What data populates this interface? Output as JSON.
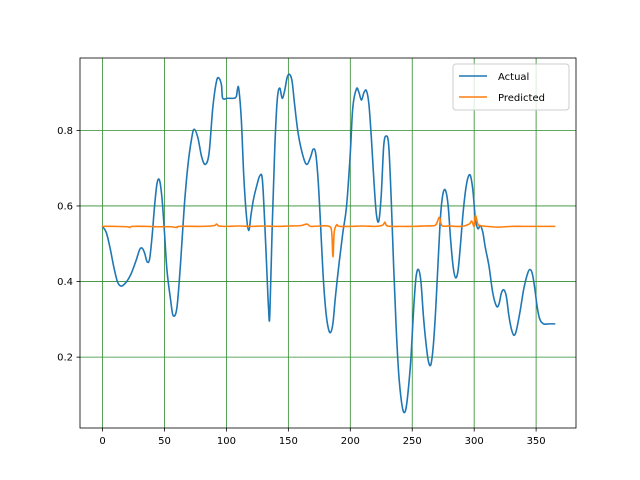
{
  "chart_data": {
    "type": "line",
    "title": "",
    "xlabel": "",
    "ylabel": "",
    "xlim": [
      -18.2,
      382.2
    ],
    "ylim": [
      0.0125,
      0.9915
    ],
    "grid": true,
    "grid_color": "#2e8b2e",
    "legend_position": "upper right",
    "x_ticks": [
      0,
      50,
      100,
      150,
      200,
      250,
      300,
      350
    ],
    "y_ticks": [
      0.2,
      0.4,
      0.6,
      0.8
    ],
    "x_tick_labels": [
      "0",
      "50",
      "100",
      "150",
      "200",
      "250",
      "300",
      "350"
    ],
    "y_tick_labels": [
      "0.2",
      "0.4",
      "0.6",
      "0.8"
    ],
    "series": [
      {
        "name": "Actual",
        "color": "#1f77b4",
        "points": [
          [
            0,
            0.545
          ],
          [
            3,
            0.53
          ],
          [
            6,
            0.49
          ],
          [
            9,
            0.44
          ],
          [
            12,
            0.4
          ],
          [
            15,
            0.388
          ],
          [
            19,
            0.398
          ],
          [
            23,
            0.42
          ],
          [
            27,
            0.455
          ],
          [
            30,
            0.485
          ],
          [
            32,
            0.488
          ],
          [
            34,
            0.475
          ],
          [
            36,
            0.452
          ],
          [
            38,
            0.46
          ],
          [
            40,
            0.52
          ],
          [
            42,
            0.6
          ],
          [
            44,
            0.66
          ],
          [
            46,
            0.668
          ],
          [
            48,
            0.62
          ],
          [
            50,
            0.53
          ],
          [
            52,
            0.43
          ],
          [
            55,
            0.35
          ],
          [
            57,
            0.31
          ],
          [
            60,
            0.33
          ],
          [
            63,
            0.45
          ],
          [
            66,
            0.6
          ],
          [
            69,
            0.71
          ],
          [
            72,
            0.78
          ],
          [
            74,
            0.803
          ],
          [
            77,
            0.78
          ],
          [
            80,
            0.73
          ],
          [
            83,
            0.71
          ],
          [
            86,
            0.74
          ],
          [
            89,
            0.86
          ],
          [
            92,
            0.93
          ],
          [
            94,
            0.938
          ],
          [
            96,
            0.92
          ],
          [
            97,
            0.885
          ],
          [
            101,
            0.885
          ],
          [
            106,
            0.885
          ],
          [
            108,
            0.89
          ],
          [
            109,
            0.91
          ],
          [
            110,
            0.91
          ],
          [
            112,
            0.83
          ],
          [
            114,
            0.68
          ],
          [
            116,
            0.58
          ],
          [
            118,
            0.535
          ],
          [
            120,
            0.58
          ],
          [
            122,
            0.62
          ],
          [
            125,
            0.66
          ],
          [
            127,
            0.68
          ],
          [
            129,
            0.67
          ],
          [
            131,
            0.55
          ],
          [
            133,
            0.4
          ],
          [
            134,
            0.33
          ],
          [
            135,
            0.31
          ],
          [
            137,
            0.55
          ],
          [
            139,
            0.75
          ],
          [
            141,
            0.88
          ],
          [
            143,
            0.912
          ],
          [
            145,
            0.885
          ],
          [
            147,
            0.905
          ],
          [
            149,
            0.94
          ],
          [
            151,
            0.948
          ],
          [
            153,
            0.93
          ],
          [
            155,
            0.87
          ],
          [
            158,
            0.79
          ],
          [
            162,
            0.73
          ],
          [
            165,
            0.71
          ],
          [
            168,
            0.73
          ],
          [
            170,
            0.75
          ],
          [
            172,
            0.74
          ],
          [
            174,
            0.67
          ],
          [
            176,
            0.55
          ],
          [
            178,
            0.42
          ],
          [
            180,
            0.33
          ],
          [
            182,
            0.28
          ],
          [
            184,
            0.265
          ],
          [
            186,
            0.29
          ],
          [
            188,
            0.36
          ],
          [
            191,
            0.45
          ],
          [
            194,
            0.53
          ],
          [
            197,
            0.6
          ],
          [
            200,
            0.74
          ],
          [
            202,
            0.86
          ],
          [
            205,
            0.91
          ],
          [
            207,
            0.9
          ],
          [
            209,
            0.88
          ],
          [
            211,
            0.9
          ],
          [
            213,
            0.905
          ],
          [
            215,
            0.87
          ],
          [
            217,
            0.78
          ],
          [
            219,
            0.67
          ],
          [
            221,
            0.58
          ],
          [
            223,
            0.56
          ],
          [
            225,
            0.63
          ],
          [
            227,
            0.76
          ],
          [
            229,
            0.785
          ],
          [
            231,
            0.76
          ],
          [
            233,
            0.62
          ],
          [
            235,
            0.44
          ],
          [
            237,
            0.28
          ],
          [
            239,
            0.16
          ],
          [
            241,
            0.09
          ],
          [
            243,
            0.055
          ],
          [
            245,
            0.065
          ],
          [
            247,
            0.12
          ],
          [
            249,
            0.2
          ],
          [
            251,
            0.32
          ],
          [
            253,
            0.41
          ],
          [
            255,
            0.432
          ],
          [
            257,
            0.4
          ],
          [
            259,
            0.31
          ],
          [
            261,
            0.24
          ],
          [
            263,
            0.19
          ],
          [
            265,
            0.18
          ],
          [
            267,
            0.23
          ],
          [
            269,
            0.33
          ],
          [
            271,
            0.46
          ],
          [
            273,
            0.58
          ],
          [
            275,
            0.635
          ],
          [
            277,
            0.64
          ],
          [
            279,
            0.6
          ],
          [
            281,
            0.51
          ],
          [
            283,
            0.44
          ],
          [
            285,
            0.41
          ],
          [
            287,
            0.43
          ],
          [
            289,
            0.5
          ],
          [
            291,
            0.58
          ],
          [
            293,
            0.64
          ],
          [
            295,
            0.675
          ],
          [
            297,
            0.68
          ],
          [
            299,
            0.64
          ],
          [
            301,
            0.565
          ],
          [
            303,
            0.54
          ],
          [
            305,
            0.548
          ],
          [
            307,
            0.53
          ],
          [
            309,
            0.49
          ],
          [
            312,
            0.44
          ],
          [
            315,
            0.37
          ],
          [
            318,
            0.335
          ],
          [
            320,
            0.34
          ],
          [
            322,
            0.37
          ],
          [
            324,
            0.378
          ],
          [
            326,
            0.36
          ],
          [
            328,
            0.31
          ],
          [
            330,
            0.275
          ],
          [
            332,
            0.258
          ],
          [
            334,
            0.27
          ],
          [
            337,
            0.32
          ],
          [
            340,
            0.38
          ],
          [
            343,
            0.42
          ],
          [
            345,
            0.432
          ],
          [
            347,
            0.42
          ],
          [
            349,
            0.38
          ],
          [
            351,
            0.33
          ],
          [
            353,
            0.3
          ],
          [
            356,
            0.288
          ],
          [
            360,
            0.288
          ],
          [
            365,
            0.288
          ]
        ]
      },
      {
        "name": "Predicted",
        "color": "#ff7f0e",
        "points": [
          [
            0,
            0.546
          ],
          [
            10,
            0.546
          ],
          [
            20,
            0.545
          ],
          [
            22,
            0.543
          ],
          [
            24,
            0.546
          ],
          [
            35,
            0.546
          ],
          [
            45,
            0.545
          ],
          [
            55,
            0.545
          ],
          [
            60,
            0.543
          ],
          [
            62,
            0.546
          ],
          [
            80,
            0.546
          ],
          [
            90,
            0.548
          ],
          [
            92,
            0.552
          ],
          [
            94,
            0.547
          ],
          [
            100,
            0.546
          ],
          [
            110,
            0.547
          ],
          [
            120,
            0.546
          ],
          [
            130,
            0.547
          ],
          [
            140,
            0.546
          ],
          [
            150,
            0.547
          ],
          [
            160,
            0.548
          ],
          [
            165,
            0.552
          ],
          [
            168,
            0.546
          ],
          [
            175,
            0.547
          ],
          [
            183,
            0.546
          ],
          [
            185,
            0.53
          ],
          [
            186,
            0.465
          ],
          [
            187,
            0.53
          ],
          [
            189,
            0.55
          ],
          [
            191,
            0.546
          ],
          [
            200,
            0.546
          ],
          [
            210,
            0.547
          ],
          [
            220,
            0.546
          ],
          [
            226,
            0.549
          ],
          [
            228,
            0.557
          ],
          [
            230,
            0.547
          ],
          [
            240,
            0.546
          ],
          [
            250,
            0.546
          ],
          [
            260,
            0.547
          ],
          [
            268,
            0.548
          ],
          [
            270,
            0.556
          ],
          [
            272,
            0.57
          ],
          [
            274,
            0.548
          ],
          [
            280,
            0.547
          ],
          [
            290,
            0.546
          ],
          [
            296,
            0.552
          ],
          [
            298,
            0.56
          ],
          [
            300,
            0.546
          ],
          [
            301,
            0.575
          ],
          [
            303,
            0.552
          ],
          [
            305,
            0.548
          ],
          [
            310,
            0.546
          ],
          [
            320,
            0.544
          ],
          [
            330,
            0.546
          ],
          [
            340,
            0.546
          ],
          [
            350,
            0.546
          ],
          [
            360,
            0.546
          ],
          [
            365,
            0.546
          ]
        ]
      }
    ]
  }
}
